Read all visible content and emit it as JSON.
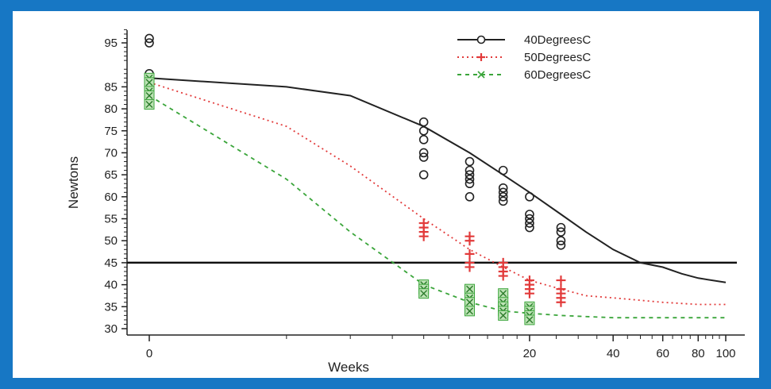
{
  "colors": {
    "frame": "#1777c4",
    "panel": "#ffffff"
  },
  "chart_data": {
    "type": "scatter",
    "xlabel": "Weeks",
    "ylabel": "Newtons",
    "x_scale": "log1p",
    "xlim": [
      0,
      100
    ],
    "ylim": [
      28,
      100
    ],
    "x_ticks": [
      0,
      20,
      40,
      60,
      80,
      100
    ],
    "x_tick_labels": [
      "0",
      "20",
      "40",
      "60",
      "80",
      "100"
    ],
    "y_ticks": [
      30,
      35,
      40,
      45,
      50,
      55,
      60,
      65,
      70,
      75,
      80,
      85,
      95
    ],
    "y_tick_labels": [
      "30",
      "35",
      "40",
      "45",
      "50",
      "55",
      "60",
      "65",
      "70",
      "75",
      "80",
      "85",
      "95"
    ],
    "reference_line": {
      "y": 45
    },
    "grid": false,
    "legend": {
      "position": "top-right"
    },
    "series": [
      {
        "name": "40DegreesC",
        "color": "#222222",
        "marker": "circle",
        "line": "solid",
        "points": [
          [
            0,
            96
          ],
          [
            0,
            95
          ],
          [
            0,
            88
          ],
          [
            0,
            87
          ],
          [
            0,
            86
          ],
          [
            8,
            77
          ],
          [
            8,
            75
          ],
          [
            8,
            73
          ],
          [
            8,
            70
          ],
          [
            8,
            69
          ],
          [
            8,
            65
          ],
          [
            12,
            68
          ],
          [
            12,
            66
          ],
          [
            12,
            65
          ],
          [
            12,
            64
          ],
          [
            12,
            63
          ],
          [
            12,
            60
          ],
          [
            16,
            66
          ],
          [
            16,
            62
          ],
          [
            16,
            61
          ],
          [
            16,
            60
          ],
          [
            16,
            59
          ],
          [
            20,
            60
          ],
          [
            20,
            56
          ],
          [
            20,
            55
          ],
          [
            20,
            54
          ],
          [
            20,
            53
          ],
          [
            26,
            53
          ],
          [
            26,
            52
          ],
          [
            26,
            50
          ],
          [
            26,
            49
          ]
        ],
        "fit": [
          [
            0,
            87
          ],
          [
            2,
            85
          ],
          [
            4,
            83
          ],
          [
            8,
            76
          ],
          [
            12,
            70
          ],
          [
            16,
            65
          ],
          [
            20,
            61
          ],
          [
            26,
            56
          ],
          [
            32,
            52
          ],
          [
            40,
            48
          ],
          [
            50,
            45
          ],
          [
            60,
            44
          ],
          [
            70,
            42.5
          ],
          [
            80,
            41.5
          ],
          [
            100,
            40.5
          ]
        ]
      },
      {
        "name": "50DegreesC",
        "color": "#e23b3b",
        "marker": "plus",
        "line": "dotted",
        "points": [
          [
            0,
            86
          ],
          [
            0,
            84
          ],
          [
            0,
            82
          ],
          [
            8,
            54
          ],
          [
            8,
            53
          ],
          [
            8,
            52
          ],
          [
            8,
            51
          ],
          [
            12,
            51
          ],
          [
            12,
            50
          ],
          [
            12,
            47
          ],
          [
            12,
            45
          ],
          [
            12,
            44
          ],
          [
            16,
            45
          ],
          [
            16,
            44
          ],
          [
            16,
            43
          ],
          [
            16,
            42
          ],
          [
            20,
            41
          ],
          [
            20,
            40
          ],
          [
            20,
            39
          ],
          [
            20,
            38
          ],
          [
            26,
            41
          ],
          [
            26,
            39
          ],
          [
            26,
            38
          ],
          [
            26,
            37
          ],
          [
            26,
            36
          ]
        ],
        "fit": [
          [
            0,
            86
          ],
          [
            2,
            76
          ],
          [
            4,
            67
          ],
          [
            8,
            55
          ],
          [
            12,
            48
          ],
          [
            16,
            44
          ],
          [
            20,
            41
          ],
          [
            26,
            39
          ],
          [
            32,
            37.5
          ],
          [
            40,
            37
          ],
          [
            60,
            36
          ],
          [
            80,
            35.5
          ],
          [
            100,
            35.5
          ]
        ]
      },
      {
        "name": "60DegreesC",
        "color": "#3aa53a",
        "marker": "x-square",
        "line": "dashed",
        "points": [
          [
            0,
            87
          ],
          [
            0,
            86
          ],
          [
            0,
            84
          ],
          [
            0,
            83
          ],
          [
            0,
            81
          ],
          [
            8,
            40
          ],
          [
            8,
            39
          ],
          [
            8,
            38
          ],
          [
            12,
            39
          ],
          [
            12,
            37
          ],
          [
            12,
            36
          ],
          [
            12,
            34
          ],
          [
            16,
            38
          ],
          [
            16,
            36
          ],
          [
            16,
            35
          ],
          [
            16,
            34
          ],
          [
            16,
            33
          ],
          [
            20,
            35
          ],
          [
            20,
            34
          ],
          [
            20,
            33
          ],
          [
            20,
            32
          ]
        ],
        "fit": [
          [
            0,
            83
          ],
          [
            2,
            64
          ],
          [
            4,
            52
          ],
          [
            8,
            40
          ],
          [
            12,
            36
          ],
          [
            16,
            34
          ],
          [
            20,
            33.5
          ],
          [
            26,
            33
          ],
          [
            40,
            32.5
          ],
          [
            60,
            32.5
          ],
          [
            100,
            32.5
          ]
        ]
      }
    ]
  }
}
